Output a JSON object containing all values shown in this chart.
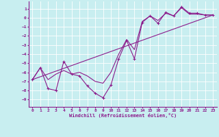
{
  "background_color": "#c8eef0",
  "grid_color": "#ffffff",
  "line_color": "#8b1a8b",
  "xlabel": "Windchill (Refroidissement éolien,°C)",
  "ylim": [
    -9.8,
    1.8
  ],
  "xlim": [
    -0.5,
    23.5
  ],
  "yticks": [
    1,
    0,
    -1,
    -2,
    -3,
    -4,
    -5,
    -6,
    -7,
    -8,
    -9
  ],
  "xticks": [
    0,
    1,
    2,
    3,
    4,
    5,
    6,
    7,
    8,
    9,
    10,
    11,
    12,
    13,
    14,
    15,
    16,
    17,
    18,
    19,
    20,
    21,
    22,
    23
  ],
  "line1_x": [
    0,
    1,
    2,
    3,
    4,
    5,
    6,
    7,
    8,
    9,
    10,
    11,
    12,
    13,
    14,
    15,
    16,
    17,
    18,
    19,
    20,
    21,
    22,
    23
  ],
  "line1_y": [
    -6.8,
    -5.5,
    -7.8,
    -8.0,
    -4.8,
    -6.2,
    -6.4,
    -7.5,
    -8.3,
    -8.8,
    -7.4,
    -4.5,
    -2.5,
    -4.5,
    -0.5,
    0.2,
    -0.6,
    0.6,
    0.2,
    1.2,
    0.5,
    0.5,
    0.3,
    0.3
  ],
  "line2_x": [
    0,
    1,
    2,
    3,
    4,
    5,
    6,
    7,
    8,
    9,
    10,
    11,
    12,
    13,
    14,
    15,
    16,
    17,
    18,
    19,
    20,
    21,
    22,
    23
  ],
  "line2_y": [
    -6.8,
    -5.5,
    -6.8,
    -6.2,
    -5.8,
    -6.2,
    -6.0,
    -6.4,
    -7.0,
    -7.2,
    -6.0,
    -4.0,
    -2.4,
    -3.5,
    -0.4,
    0.2,
    -0.3,
    0.5,
    0.2,
    1.1,
    0.4,
    0.4,
    0.3,
    0.3
  ],
  "trend_x": [
    0,
    23
  ],
  "trend_y": [
    -6.8,
    0.3
  ],
  "tick_fontsize": 4.5,
  "xlabel_fontsize": 5.0
}
